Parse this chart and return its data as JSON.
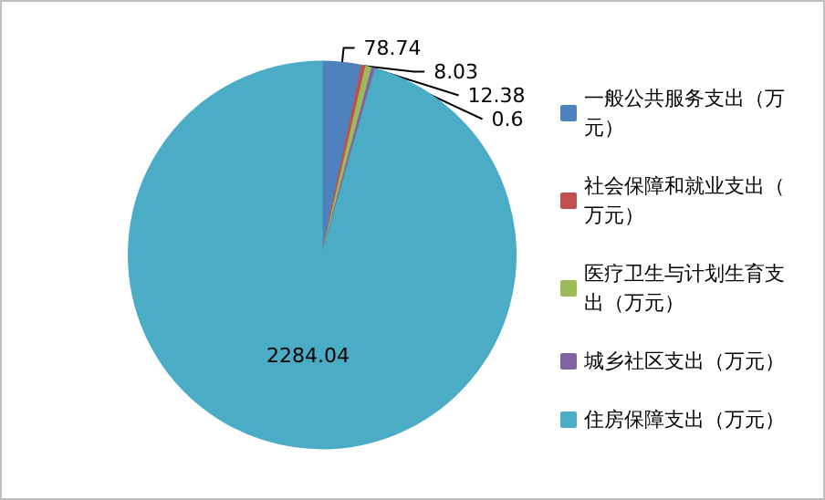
{
  "chart_data": {
    "type": "pie",
    "categories": [
      "一般公共服务支出（万元）",
      "社会保障和就业支出（万元）",
      "医疗卫生与计划生育支出（万元）",
      "城乡社区支出（万元）",
      "住房保障支出（万元）"
    ],
    "values": [
      78.74,
      8.03,
      12.38,
      0.6,
      2284.04
    ],
    "colors": [
      "#4f81bd",
      "#c0504d",
      "#9bbb59",
      "#8064a2",
      "#4bacc6"
    ],
    "data_labels": true,
    "legend": "right"
  }
}
